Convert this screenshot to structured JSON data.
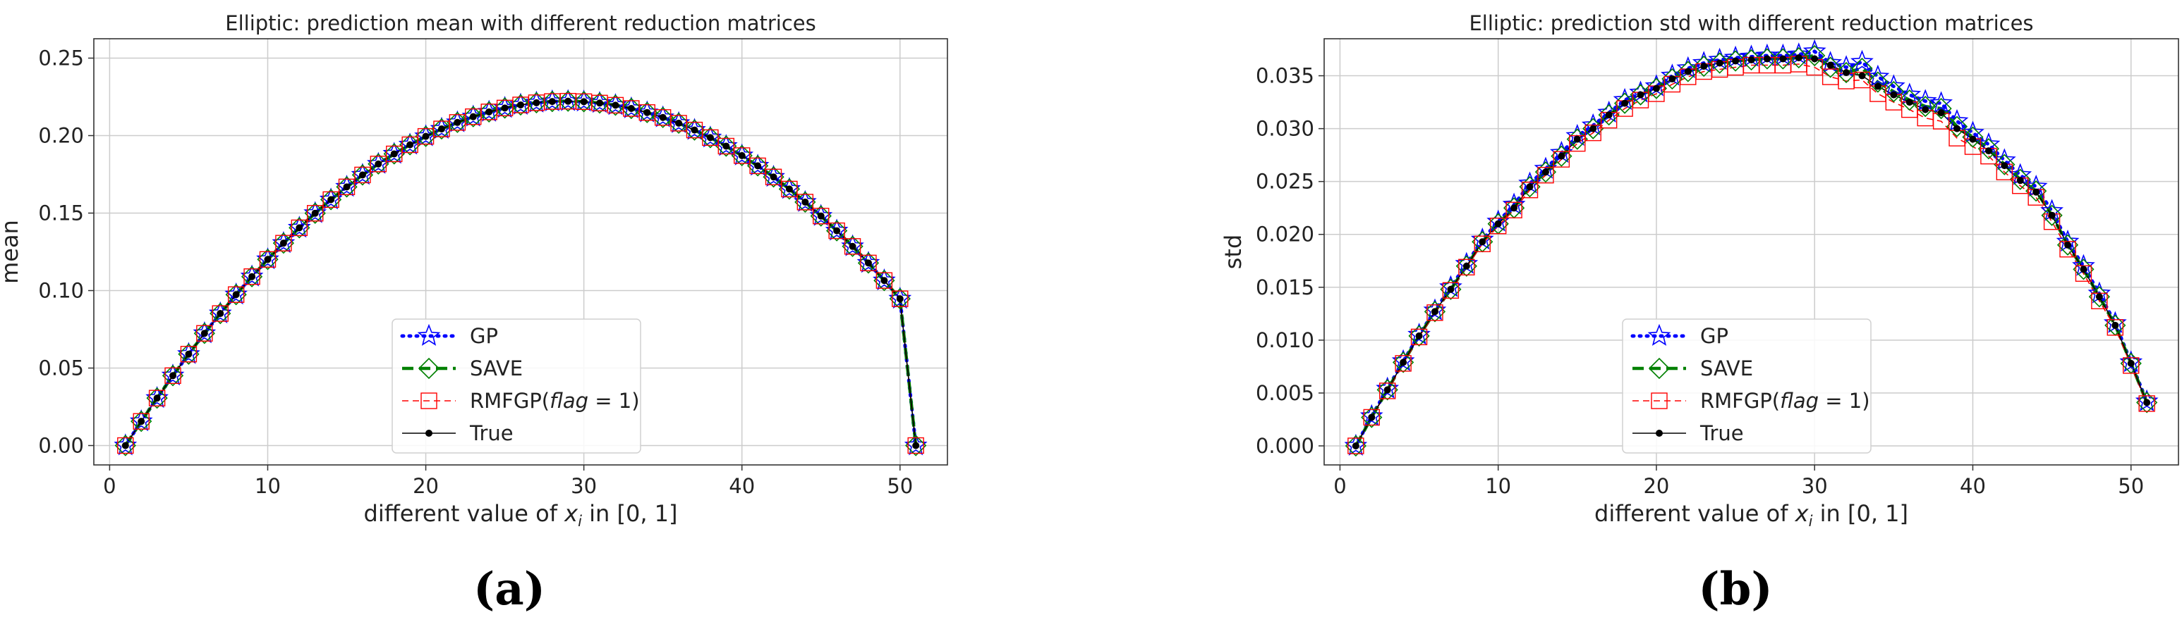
{
  "panels": [
    {
      "caption": "(a)"
    },
    {
      "caption": "(b)"
    }
  ],
  "legend": {
    "gp": "GP",
    "save": "SAVE",
    "rmfgp_prefix": "RMFGP(",
    "rmfgp_flag": "flag",
    "rmfgp_suffix": " = 1)",
    "true": "True"
  },
  "colors": {
    "gp": "#0000ff",
    "save": "#008000",
    "rmfgp": "#ff0000",
    "true": "#000000",
    "grid": "#cccccc",
    "axis": "#333333"
  },
  "chart_data": [
    {
      "type": "line",
      "title": "Elliptic: prediction mean with different reduction matrices",
      "xlabel_prefix": "different value of ",
      "xlabel_var": "x",
      "xlabel_sub": "i",
      "xlabel_suffix": " in [0, 1]",
      "ylabel": "mean",
      "xlim": [
        -1,
        53
      ],
      "ylim": [
        -0.0125,
        0.2625
      ],
      "xticks": [
        "0",
        "10",
        "20",
        "30",
        "40",
        "50"
      ],
      "yticks": [
        "0.00",
        "0.05",
        "0.10",
        "0.15",
        "0.20",
        "0.25"
      ],
      "grid": true,
      "legend_position": "lower center",
      "x": [
        1,
        2,
        3,
        4,
        5,
        6,
        7,
        8,
        9,
        10,
        11,
        12,
        13,
        14,
        15,
        16,
        17,
        18,
        19,
        20,
        21,
        22,
        23,
        24,
        25,
        26,
        27,
        28,
        29,
        30,
        31,
        32,
        33,
        34,
        35,
        36,
        37,
        38,
        39,
        40,
        41,
        42,
        43,
        44,
        45,
        46,
        47,
        48,
        49,
        50,
        51
      ],
      "series": [
        {
          "name": "GP",
          "values": [
            0.0,
            0.0156,
            0.0306,
            0.0451,
            0.059,
            0.0724,
            0.0852,
            0.0974,
            0.109,
            0.1201,
            0.1306,
            0.1405,
            0.1499,
            0.1587,
            0.1669,
            0.1746,
            0.1817,
            0.1882,
            0.1941,
            0.1995,
            0.2043,
            0.2085,
            0.2122,
            0.2153,
            0.2178,
            0.2198,
            0.2212,
            0.222,
            0.2222,
            0.2219,
            0.221,
            0.2196,
            0.2175,
            0.2149,
            0.2117,
            0.208,
            0.2036,
            0.1987,
            0.1932,
            0.1871,
            0.1805,
            0.1733,
            0.1655,
            0.1571,
            0.1481,
            0.1386,
            0.1285,
            0.1178,
            0.1065,
            0.0947,
            0.0
          ]
        },
        {
          "name": "SAVE",
          "values": [
            0.0,
            0.0156,
            0.0306,
            0.0451,
            0.059,
            0.0724,
            0.0852,
            0.0974,
            0.109,
            0.1201,
            0.1306,
            0.1405,
            0.1499,
            0.1587,
            0.1669,
            0.1746,
            0.1817,
            0.1882,
            0.1941,
            0.1995,
            0.2043,
            0.2085,
            0.2122,
            0.2153,
            0.2178,
            0.2198,
            0.2212,
            0.222,
            0.2222,
            0.2219,
            0.221,
            0.2196,
            0.2175,
            0.2149,
            0.2117,
            0.208,
            0.2036,
            0.1987,
            0.1932,
            0.1871,
            0.1805,
            0.1733,
            0.1655,
            0.1571,
            0.1481,
            0.1386,
            0.1285,
            0.1178,
            0.1065,
            0.0947,
            0.0
          ]
        },
        {
          "name": "RMFGP(flag = 1)",
          "values": [
            0.0,
            0.0156,
            0.0306,
            0.0451,
            0.059,
            0.0724,
            0.0852,
            0.0974,
            0.109,
            0.1201,
            0.1306,
            0.1405,
            0.1499,
            0.1587,
            0.1669,
            0.1746,
            0.1817,
            0.1882,
            0.1941,
            0.1995,
            0.2043,
            0.2085,
            0.2122,
            0.2153,
            0.2178,
            0.2198,
            0.2212,
            0.222,
            0.2222,
            0.2219,
            0.221,
            0.2196,
            0.2175,
            0.2149,
            0.2117,
            0.208,
            0.2036,
            0.1987,
            0.1932,
            0.1871,
            0.1805,
            0.1733,
            0.1655,
            0.1571,
            0.1481,
            0.1386,
            0.1285,
            0.1178,
            0.1065,
            0.0947,
            0.0
          ]
        },
        {
          "name": "True",
          "values": [
            0.0,
            0.0156,
            0.0306,
            0.0451,
            0.059,
            0.0724,
            0.0852,
            0.0974,
            0.109,
            0.1201,
            0.1306,
            0.1405,
            0.1499,
            0.1587,
            0.1669,
            0.1746,
            0.1817,
            0.1882,
            0.1941,
            0.1995,
            0.2043,
            0.2085,
            0.2122,
            0.2153,
            0.2178,
            0.2198,
            0.2212,
            0.222,
            0.2222,
            0.2219,
            0.221,
            0.2196,
            0.2175,
            0.2149,
            0.2117,
            0.208,
            0.2036,
            0.1987,
            0.1932,
            0.1871,
            0.1805,
            0.1733,
            0.1655,
            0.1571,
            0.1481,
            0.1386,
            0.1285,
            0.1178,
            0.1065,
            0.0947,
            0.0
          ]
        }
      ]
    },
    {
      "type": "line",
      "title": "Elliptic: prediction std with different reduction matrices",
      "xlabel_prefix": "different value of ",
      "xlabel_var": "x",
      "xlabel_sub": "i",
      "xlabel_suffix": " in [0, 1]",
      "ylabel": "std",
      "xlim": [
        -1,
        53
      ],
      "ylim": [
        -0.0018,
        0.0385
      ],
      "xticks": [
        "0",
        "10",
        "20",
        "30",
        "40",
        "50"
      ],
      "yticks": [
        "0.000",
        "0.005",
        "0.010",
        "0.015",
        "0.020",
        "0.025",
        "0.030",
        "0.035"
      ],
      "grid": true,
      "legend_position": "lower center",
      "x": [
        1,
        2,
        3,
        4,
        5,
        6,
        7,
        8,
        9,
        10,
        11,
        12,
        13,
        14,
        15,
        16,
        17,
        18,
        19,
        20,
        21,
        22,
        23,
        24,
        25,
        26,
        27,
        28,
        29,
        30,
        31,
        32,
        33,
        34,
        35,
        36,
        37,
        38,
        39,
        40,
        41,
        42,
        43,
        44,
        45,
        46,
        47,
        48,
        49,
        50,
        51
      ],
      "series": [
        {
          "name": "GP",
          "values": [
            0.0,
            0.0028,
            0.0054,
            0.008,
            0.0105,
            0.0128,
            0.015,
            0.0172,
            0.0195,
            0.0212,
            0.0228,
            0.0248,
            0.0262,
            0.0277,
            0.0293,
            0.0303,
            0.0315,
            0.0327,
            0.0334,
            0.034,
            0.035,
            0.0357,
            0.0362,
            0.0365,
            0.0367,
            0.0368,
            0.0369,
            0.0369,
            0.037,
            0.0373,
            0.0362,
            0.0358,
            0.0363,
            0.0349,
            0.034,
            0.0332,
            0.0326,
            0.0324,
            0.0307,
            0.0296,
            0.0285,
            0.027,
            0.0256,
            0.0245,
            0.0222,
            0.0193,
            0.017,
            0.0144,
            0.0116,
            0.0079,
            0.0042
          ]
        },
        {
          "name": "SAVE",
          "values": [
            0.0,
            0.0027,
            0.0053,
            0.0079,
            0.0104,
            0.0127,
            0.0148,
            0.017,
            0.0193,
            0.021,
            0.0225,
            0.0245,
            0.0259,
            0.0274,
            0.029,
            0.03,
            0.0313,
            0.0324,
            0.0332,
            0.0338,
            0.0347,
            0.0354,
            0.0359,
            0.0362,
            0.0364,
            0.0365,
            0.0366,
            0.0366,
            0.0367,
            0.0369,
            0.0358,
            0.0353,
            0.0357,
            0.0344,
            0.0335,
            0.0327,
            0.0321,
            0.0319,
            0.0302,
            0.0292,
            0.0281,
            0.0266,
            0.0252,
            0.0241,
            0.0218,
            0.019,
            0.0167,
            0.0141,
            0.0114,
            0.0078,
            0.0041
          ]
        },
        {
          "name": "RMFGP(flag = 1)",
          "values": [
            0.0,
            0.0027,
            0.0052,
            0.0078,
            0.0103,
            0.0126,
            0.0147,
            0.0169,
            0.0191,
            0.0208,
            0.0223,
            0.0242,
            0.0256,
            0.0271,
            0.0286,
            0.0296,
            0.0308,
            0.0319,
            0.0327,
            0.0333,
            0.0342,
            0.0349,
            0.0354,
            0.0356,
            0.0358,
            0.036,
            0.036,
            0.036,
            0.0361,
            0.0358,
            0.0349,
            0.0345,
            0.0346,
            0.0333,
            0.0325,
            0.0318,
            0.031,
            0.0307,
            0.0291,
            0.0283,
            0.0274,
            0.0259,
            0.0246,
            0.0235,
            0.0212,
            0.0186,
            0.0163,
            0.0137,
            0.0112,
            0.0076,
            0.004
          ]
        },
        {
          "name": "True",
          "values": [
            0.0,
            0.0027,
            0.0053,
            0.0079,
            0.0104,
            0.0127,
            0.0148,
            0.017,
            0.0193,
            0.021,
            0.0225,
            0.0245,
            0.0259,
            0.0274,
            0.029,
            0.03,
            0.0313,
            0.0324,
            0.0332,
            0.0338,
            0.0347,
            0.0354,
            0.0359,
            0.0362,
            0.0364,
            0.0365,
            0.0366,
            0.0366,
            0.0367,
            0.0366,
            0.036,
            0.0353,
            0.035,
            0.034,
            0.0332,
            0.0325,
            0.0318,
            0.0315,
            0.03,
            0.029,
            0.0279,
            0.0265,
            0.0251,
            0.024,
            0.0218,
            0.019,
            0.0167,
            0.0141,
            0.0114,
            0.0078,
            0.0041
          ]
        }
      ]
    }
  ]
}
